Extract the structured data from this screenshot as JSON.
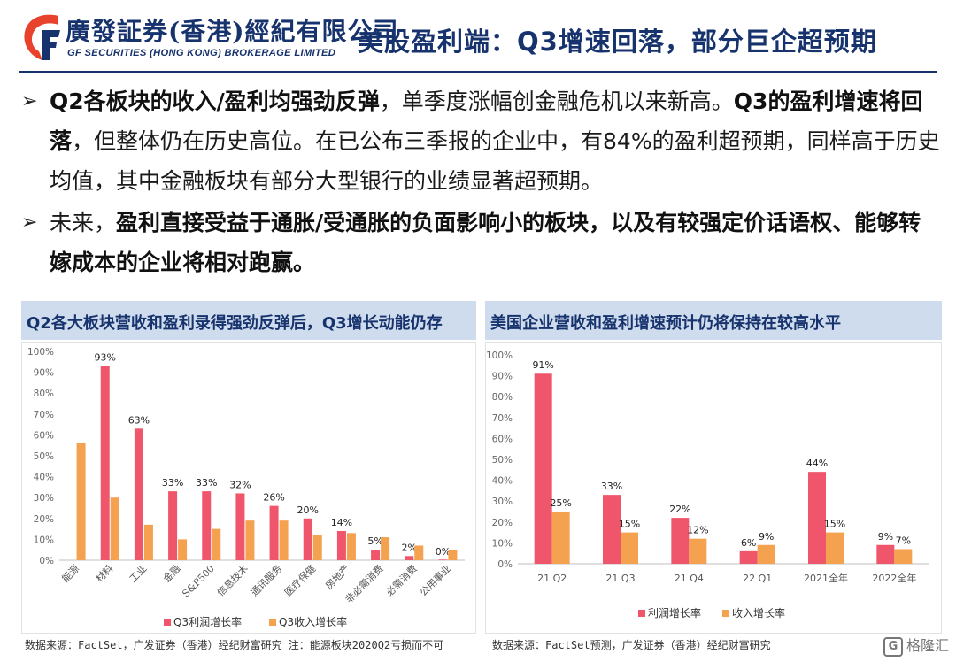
{
  "header": {
    "logo_cn": "廣發証券(香港)經紀有限公司",
    "logo_en": "GF SECURITIES (HONG KONG) BROKERAGE LIMITED",
    "title": "美股盈利端：Q3增速回落，部分巨企超预期"
  },
  "bullets": [
    {
      "segments": [
        {
          "text": "Q2各板块的收入/盈利均强劲反弹",
          "bold": true
        },
        {
          "text": "，单季度涨幅创金融危机以来新高。",
          "bold": false
        },
        {
          "text": "Q3的盈利增速将回落",
          "bold": true
        },
        {
          "text": "，但整体仍在历史高位。在已公布三季报的企业中，有84%的盈利超预期，同样高于历史均值，其中金融板块有部分大型银行的业绩显著超预期。",
          "bold": false
        }
      ]
    },
    {
      "segments": [
        {
          "text": "未来，",
          "bold": false
        },
        {
          "text": "盈利直接受益于通胀/受通胀的负面影响小的板块，以及有较强定价话语权、能够转嫁成本的企业将相对跑赢。",
          "bold": true
        }
      ]
    }
  ],
  "left_panel": {
    "title": "Q2各大板块营收和盈利录得强劲反弹后，Q3增长动能仍存",
    "footer": "数据来源：FactSet，广发证券（香港）经纪财富研究     注：能源板块2020Q2亏损而不可"
  },
  "right_panel": {
    "title": "美国企业营收和盈利增速预计仍将保持在较高水平",
    "footer": "数据来源：FactSet预测，广发证券（香港）经纪财富研究"
  },
  "watermark": "格隆汇",
  "colors": {
    "navy": "#17336d",
    "profit": "#f0566b",
    "revenue": "#f4a24f"
  },
  "chart_data": [
    {
      "type": "bar",
      "categories": [
        "能源",
        "材料",
        "工业",
        "金融",
        "S&P500",
        "信息技术",
        "通讯服务",
        "医疗保健",
        "房地产",
        "非必需消费",
        "必需消费",
        "公用事业"
      ],
      "series": [
        {
          "name": "Q3利润增长率",
          "values": [
            null,
            93,
            63,
            33,
            33,
            32,
            26,
            20,
            14,
            5,
            2,
            0
          ],
          "color": "#f0566b"
        },
        {
          "name": "Q3收入增长率",
          "values": [
            56,
            30,
            17,
            10,
            15,
            19,
            19,
            12,
            13,
            11,
            7,
            5
          ],
          "color": "#f4a24f"
        }
      ],
      "data_labels": [
        "",
        "93%",
        "63%",
        "33%",
        "33%",
        "32%",
        "26%",
        "20%",
        "14%",
        "5%",
        "2%",
        "0%"
      ],
      "yticks": [
        "0%",
        "10%",
        "20%",
        "30%",
        "40%",
        "50%",
        "60%",
        "70%",
        "80%",
        "90%",
        "100%"
      ],
      "ylim": [
        0,
        100
      ],
      "legend": "bottom"
    },
    {
      "type": "bar",
      "categories": [
        "21 Q2",
        "21 Q3",
        "21 Q4",
        "22 Q1",
        "2021全年",
        "2022全年"
      ],
      "series": [
        {
          "name": "利润增长率",
          "values": [
            91,
            33,
            22,
            6,
            44,
            9
          ],
          "labels": [
            "91%",
            "33%",
            "22%",
            "6%",
            "44%",
            "9%"
          ],
          "color": "#f0566b"
        },
        {
          "name": "收入增长率",
          "values": [
            25,
            15,
            12,
            9,
            15,
            7
          ],
          "labels": [
            "25%",
            "15%",
            "12%",
            "9%",
            "15%",
            "7%"
          ],
          "color": "#f4a24f"
        }
      ],
      "yticks": [
        "0%",
        "10%",
        "20%",
        "30%",
        "40%",
        "50%",
        "60%",
        "70%",
        "80%",
        "90%",
        "100%"
      ],
      "ylim": [
        0,
        100
      ],
      "legend": "bottom"
    }
  ]
}
